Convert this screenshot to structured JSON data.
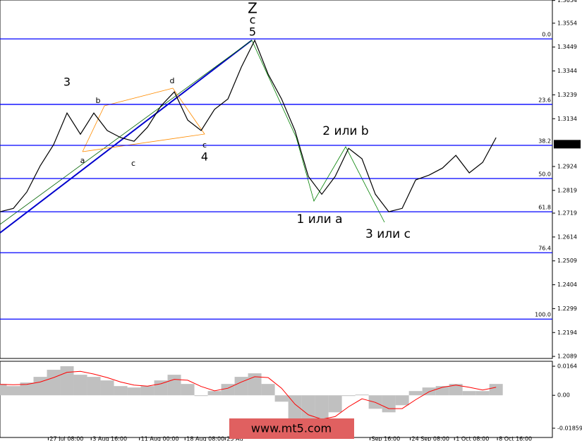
{
  "chart_data": [
    {
      "type": "line",
      "series": [
        {
          "color": "#000000",
          "values": [
            1.2725,
            1.274,
            1.2812,
            1.2927,
            1.302,
            1.3159,
            1.3066,
            1.3159,
            1.3082,
            1.3051,
            1.3035,
            1.3097,
            1.319,
            1.3252,
            1.3128,
            1.3082,
            1.3175,
            1.3221,
            1.3361,
            1.3479,
            1.333,
            1.3221,
            1.3082,
            1.288,
            1.2802,
            1.288,
            1.3004,
            1.2958,
            1.2802,
            1.2725,
            1.274,
            1.2865,
            1.2886,
            1.2917,
            1.2973,
            1.2896,
            1.2942,
            1.3051
          ]
        }
      ],
      "ylim": [
        1.208,
        1.3656
      ],
      "yticks": [
        1.3654,
        1.3554,
        1.3449,
        1.3344,
        1.3239,
        1.3134,
        1.2924,
        1.2819,
        1.2719,
        1.2614,
        1.2509,
        1.2404,
        1.2299,
        1.2194,
        1.2089
      ],
      "xlim": [
        0,
        41.2
      ],
      "xticks": [
        {
          "value": 3.6,
          "label": "27 Jul 08:00"
        },
        {
          "value": 6.8,
          "label": "3 Aug 16:00"
        },
        {
          "value": 10.4,
          "label": "11 Aug 00:00"
        },
        {
          "value": 13.8,
          "label": "18 Aug 08:00"
        },
        {
          "value": 16.8,
          "label": "25 Au"
        },
        {
          "value": 27.6,
          "label": "Sep 16:00"
        },
        {
          "value": 30.6,
          "label": "24 Sep 08:00"
        },
        {
          "value": 33.9,
          "label": "1 Oct 08:00"
        },
        {
          "value": 37.1,
          "label": "8 Oct 16:00"
        }
      ],
      "levels": [
        {
          "value": 1.3485,
          "label": "0.0"
        },
        {
          "value": 1.3197,
          "label": "23.6"
        },
        {
          "value": 1.3017,
          "label": "38.2"
        },
        {
          "value": 1.2871,
          "label": "50.0"
        },
        {
          "value": 1.2725,
          "label": "61.8"
        },
        {
          "value": 1.2545,
          "label": "76.4"
        },
        {
          "value": 1.2253,
          "label": "100.0"
        }
      ],
      "level_color": "#0000ff",
      "last_price": 1.3022,
      "annotations": [
        {
          "text": "Z",
          "color": "#0000ff"
        },
        {
          "text": "c",
          "color": "#008000"
        },
        {
          "text": "5",
          "color": "#ff0000"
        },
        {
          "text": "3",
          "color": "#ff0000"
        },
        {
          "text": "4",
          "color": "#ff0000"
        },
        {
          "text": "2 или b",
          "color": "#008000"
        },
        {
          "text": "1 или a",
          "color": "#008000"
        },
        {
          "text": "3 или c",
          "color": "#008000"
        },
        {
          "text": "a",
          "color": "#ff8c00"
        },
        {
          "text": "b",
          "color": "#ff8c00"
        },
        {
          "text": "c",
          "color": "#ff8c00"
        },
        {
          "text": "d",
          "color": "#ff8c00"
        },
        {
          "text": "c",
          "color": "#ff8c00"
        }
      ],
      "watermark": "www.mt5.com"
    },
    {
      "type": "bar",
      "series": [
        {
          "color": "#c0c0c0",
          "values": [
            0.0064,
            0.0052,
            0.0072,
            0.0104,
            0.0144,
            0.0164,
            0.0116,
            0.0104,
            0.0084,
            0.0052,
            0.0044,
            0.0052,
            0.0084,
            0.0116,
            0.0064,
            -0.0004,
            0.0024,
            0.0064,
            0.0104,
            0.0124,
            0.0064,
            -0.0036,
            -0.0136,
            -0.0136,
            -0.0136,
            -0.0096,
            -0.0004,
            0.0004,
            -0.0076,
            -0.0096,
            -0.0056,
            0.0024,
            0.0044,
            0.0052,
            0.0064,
            0.0024,
            0.0024,
            0.0064
          ]
        },
        {
          "color": "#ff0000",
          "values": [
            0.0062,
            0.006,
            0.0062,
            0.0075,
            0.01,
            0.013,
            0.0135,
            0.012,
            0.01,
            0.0075,
            0.0058,
            0.0052,
            0.0065,
            0.009,
            0.0085,
            0.005,
            0.0025,
            0.004,
            0.0075,
            0.0105,
            0.01,
            0.004,
            -0.005,
            -0.011,
            -0.0135,
            -0.012,
            -0.0065,
            -0.002,
            -0.004,
            -0.0075,
            -0.0075,
            -0.0025,
            0.002,
            0.0045,
            0.0058,
            0.0045,
            0.003,
            0.0045
          ]
        }
      ],
      "ylim": [
        -0.0238,
        0.0192
      ],
      "yticks": [
        0.0164,
        {
          "value": 0,
          "label": "0.00"
        },
        -0.01859
      ]
    }
  ]
}
